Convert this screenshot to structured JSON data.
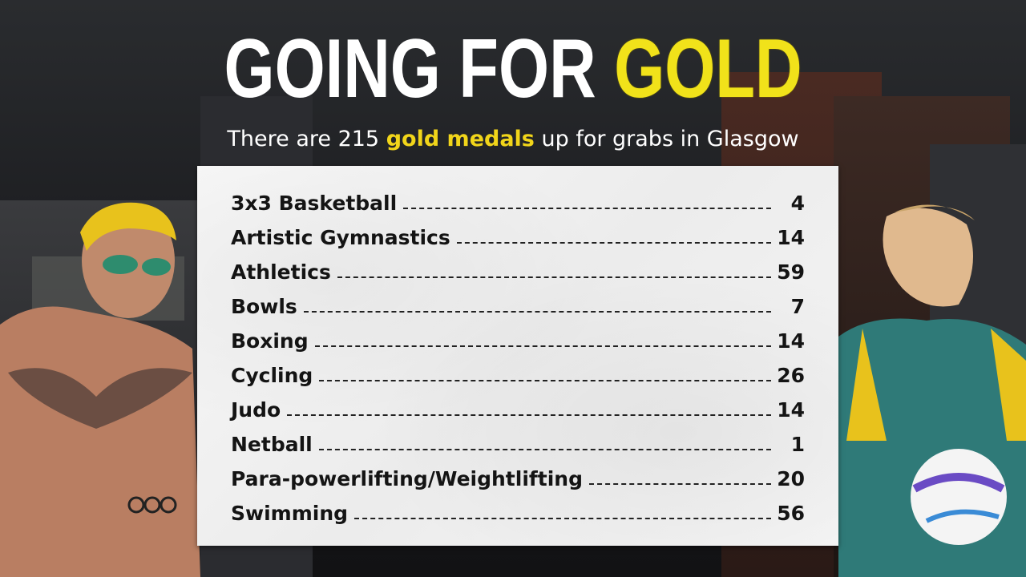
{
  "header": {
    "title_part1": "GOING FOR",
    "title_part2": "GOLD",
    "subtitle_pre": "There are 215",
    "subtitle_highlight": "gold medals",
    "subtitle_post": "up for grabs in Glasgow"
  },
  "sports": [
    {
      "name": "3x3 Basketball",
      "value": "4"
    },
    {
      "name": "Artistic Gymnastics",
      "value": "14"
    },
    {
      "name": "Athletics",
      "value": "59"
    },
    {
      "name": "Bowls",
      "value": "7"
    },
    {
      "name": "Boxing",
      "value": "14"
    },
    {
      "name": "Cycling",
      "value": "26"
    },
    {
      "name": "Judo",
      "value": "14"
    },
    {
      "name": "Netball",
      "value": "1"
    },
    {
      "name": "Para-powerlifting/Weightlifting",
      "value": "20"
    },
    {
      "name": "Swimming",
      "value": "56"
    }
  ],
  "colors": {
    "gold": "#f1e21a",
    "highlight": "#f1d51a",
    "text": "#141414"
  }
}
